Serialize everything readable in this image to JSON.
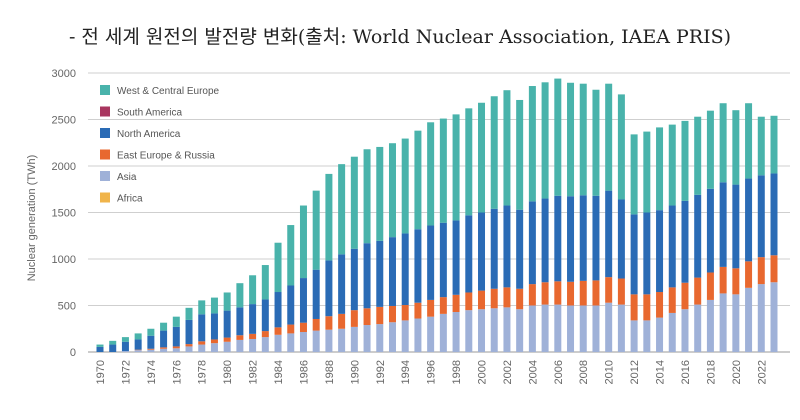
{
  "title": "- 전 세계 원전의 발전량 변화(출처: World Nuclear Association, IAEA PRIS)",
  "colors": {
    "West & Central Europe": "#49b3ab",
    "South America": "#a8365f",
    "North America": "#2a6bb5",
    "East Europe & Russia": "#e8682f",
    "Asia": "#9fb1d8",
    "Africa": "#f0b44a",
    "grid": "#cfcfcf",
    "axis": "#999999"
  },
  "chart_data": {
    "type": "bar",
    "stacked": true,
    "title": "- 전 세계 원전의 발전량 변화(출처: World Nuclear Association, IAEA PRIS)",
    "xlabel": "",
    "ylabel": "Nuclear generation (TWh)",
    "ylim": [
      0,
      3000
    ],
    "yticks": [
      0,
      500,
      1000,
      1500,
      2000,
      2500,
      3000
    ],
    "grid": true,
    "legend_position": "top-left",
    "categories": [
      "1970",
      "1971",
      "1972",
      "1973",
      "1974",
      "1975",
      "1976",
      "1977",
      "1978",
      "1979",
      "1980",
      "1981",
      "1982",
      "1983",
      "1984",
      "1985",
      "1986",
      "1987",
      "1988",
      "1989",
      "1990",
      "1991",
      "1992",
      "1993",
      "1994",
      "1995",
      "1996",
      "1997",
      "1998",
      "1999",
      "2000",
      "2001",
      "2002",
      "2003",
      "2004",
      "2005",
      "2006",
      "2007",
      "2008",
      "2009",
      "2010",
      "2011",
      "2012",
      "2013",
      "2014",
      "2015",
      "2016",
      "2017",
      "2018",
      "2019",
      "2020",
      "2021",
      "2022",
      "2023"
    ],
    "xtick_labels": [
      "1970",
      "1972",
      "1974",
      "1976",
      "1978",
      "1980",
      "1982",
      "1984",
      "1986",
      "1988",
      "1990",
      "1992",
      "1994",
      "1996",
      "1998",
      "2000",
      "2002",
      "2004",
      "2006",
      "2008",
      "2010",
      "2012",
      "2014",
      "2016",
      "2018",
      "2020",
      "2022"
    ],
    "series": [
      {
        "name": "Africa",
        "values": [
          0,
          0,
          0,
          0,
          0,
          0,
          0,
          0,
          0,
          0,
          0,
          0,
          0,
          0,
          0,
          0,
          0,
          0,
          0,
          0,
          0,
          0,
          0,
          0,
          0,
          0,
          0,
          0,
          0,
          0,
          0,
          0,
          0,
          0,
          0,
          0,
          0,
          0,
          0,
          0,
          0,
          0,
          0,
          0,
          0,
          0,
          0,
          0,
          0,
          0,
          0,
          0,
          0,
          0
        ]
      },
      {
        "name": "Asia",
        "values": [
          0,
          0,
          10,
          20,
          25,
          35,
          40,
          60,
          80,
          95,
          110,
          130,
          140,
          160,
          185,
          200,
          215,
          230,
          240,
          250,
          270,
          290,
          300,
          320,
          340,
          360,
          380,
          410,
          430,
          450,
          460,
          470,
          480,
          460,
          500,
          510,
          510,
          500,
          500,
          500,
          530,
          510,
          340,
          340,
          370,
          420,
          460,
          510,
          560,
          630,
          620,
          690,
          730,
          750
        ]
      },
      {
        "name": "East Europe & Russia",
        "values": [
          0,
          0,
          0,
          5,
          10,
          15,
          20,
          25,
          35,
          40,
          45,
          50,
          55,
          65,
          80,
          95,
          100,
          125,
          145,
          160,
          180,
          180,
          185,
          175,
          165,
          170,
          180,
          180,
          185,
          190,
          200,
          210,
          215,
          220,
          230,
          240,
          250,
          255,
          265,
          270,
          275,
          280,
          280,
          280,
          275,
          275,
          285,
          290,
          295,
          285,
          280,
          285,
          290,
          290
        ]
      },
      {
        "name": "North America",
        "values": [
          55,
          80,
          100,
          110,
          140,
          180,
          210,
          260,
          290,
          280,
          290,
          300,
          320,
          340,
          380,
          420,
          480,
          530,
          600,
          640,
          660,
          700,
          710,
          740,
          770,
          790,
          800,
          800,
          800,
          830,
          840,
          860,
          880,
          850,
          890,
          900,
          920,
          920,
          920,
          910,
          930,
          850,
          860,
          880,
          880,
          880,
          880,
          890,
          900,
          910,
          900,
          890,
          880,
          880
        ]
      },
      {
        "name": "South America",
        "values": [
          0,
          0,
          0,
          0,
          0,
          0,
          0,
          0,
          0,
          0,
          0,
          0,
          0,
          0,
          0,
          0,
          0,
          0,
          0,
          0,
          0,
          0,
          0,
          0,
          0,
          0,
          0,
          0,
          0,
          0,
          0,
          0,
          0,
          0,
          0,
          0,
          0,
          0,
          0,
          0,
          0,
          0,
          0,
          0,
          0,
          0,
          0,
          0,
          0,
          0,
          0,
          0,
          0,
          0
        ]
      },
      {
        "name": "West & Central Europe",
        "values": [
          25,
          40,
          50,
          65,
          75,
          85,
          110,
          130,
          150,
          170,
          195,
          260,
          310,
          370,
          530,
          650,
          780,
          850,
          930,
          970,
          990,
          1010,
          1010,
          1010,
          1020,
          1060,
          1110,
          1120,
          1140,
          1150,
          1180,
          1210,
          1240,
          1180,
          1240,
          1250,
          1260,
          1220,
          1200,
          1140,
          1150,
          1130,
          860,
          870,
          890,
          870,
          860,
          840,
          840,
          850,
          800,
          810,
          630,
          620
        ]
      }
    ]
  },
  "legend": {
    "items": [
      {
        "label": "West & Central Europe",
        "color": "#49b3ab"
      },
      {
        "label": "South America",
        "color": "#a8365f"
      },
      {
        "label": "North America",
        "color": "#2a6bb5"
      },
      {
        "label": "East Europe & Russia",
        "color": "#e8682f"
      },
      {
        "label": "Asia",
        "color": "#9fb1d8"
      },
      {
        "label": "Africa",
        "color": "#f0b44a"
      }
    ]
  }
}
